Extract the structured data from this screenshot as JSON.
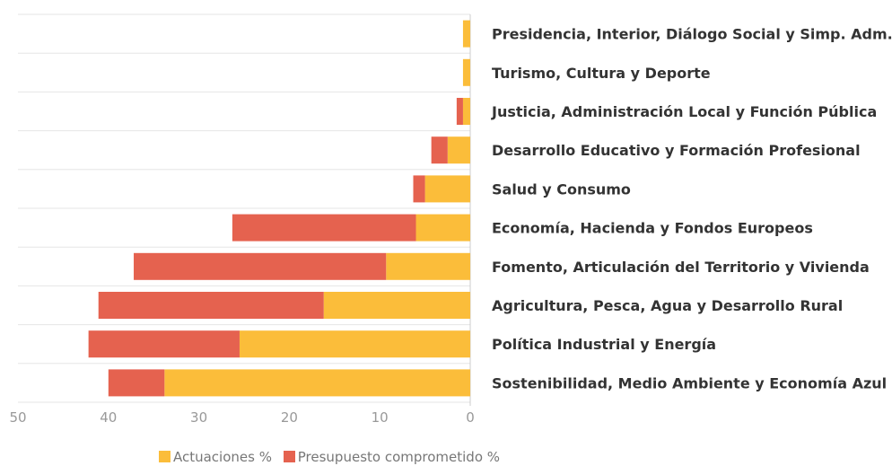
{
  "chart_data": {
    "type": "bar",
    "orientation": "horizontal",
    "stacked": true,
    "x_reversed": true,
    "categories": [
      "Presidencia, Interior, Diálogo Social y Simp. Adm.",
      "Turismo, Cultura y Deporte",
      "Justicia, Administración Local y Función Pública",
      "Desarrollo Educativo y Formación Profesional",
      "Salud y Consumo",
      "Economía, Hacienda y Fondos Europeos",
      "Fomento, Articulación del Territorio y Vivienda",
      "Agricultura, Pesca, Agua y Desarrollo Rural",
      "Política Industrial y Energía",
      "Sostenibilidad, Medio Ambiente y Economía Azul"
    ],
    "series": [
      {
        "name": "Actuaciones %",
        "color": "#FBBD3A",
        "values": [
          0.8,
          0.8,
          0.8,
          2.5,
          5.0,
          6.0,
          9.3,
          16.2,
          25.5,
          33.8
        ]
      },
      {
        "name": "Presupuesto comprometido %",
        "color": "#E5624F",
        "values": [
          0.0,
          0.0,
          0.7,
          1.8,
          1.3,
          20.3,
          27.9,
          24.9,
          16.7,
          6.2
        ]
      }
    ],
    "xlim": [
      0,
      50
    ],
    "x_ticks": [
      "50",
      "40",
      "30",
      "20",
      "10",
      "0"
    ],
    "legend_position": "bottom",
    "grid": true
  }
}
